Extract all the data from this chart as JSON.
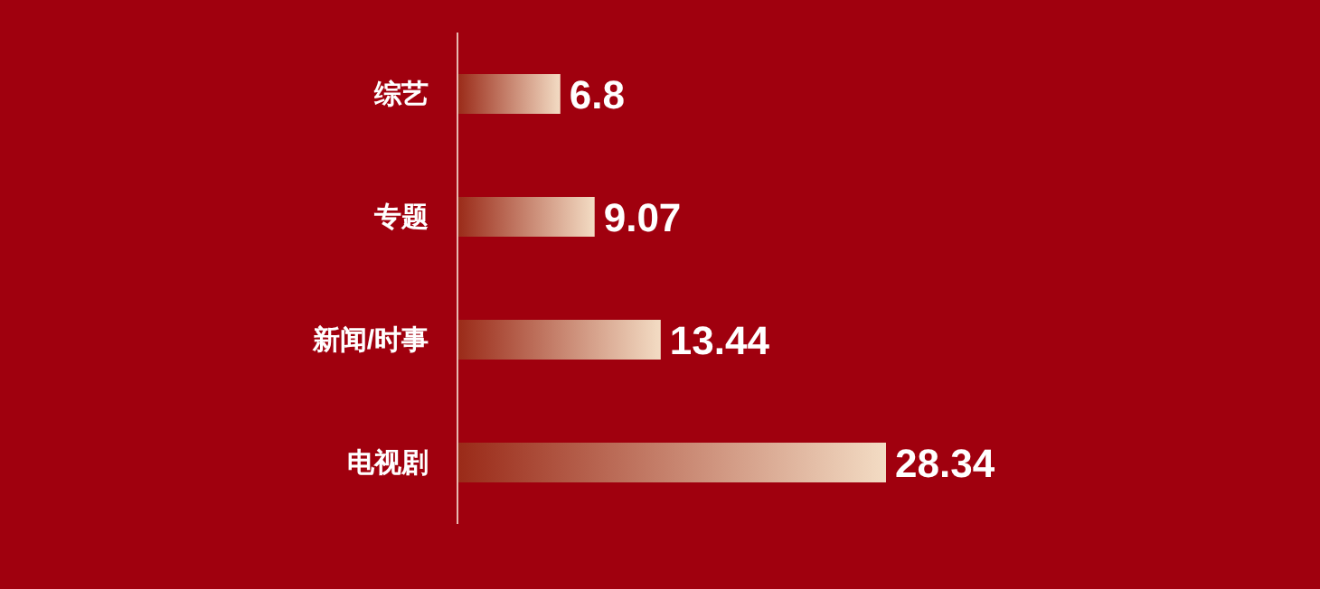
{
  "chart_data": {
    "type": "bar",
    "orientation": "horizontal",
    "categories": [
      "综艺",
      "专题",
      "新闻/时事",
      "电视剧"
    ],
    "values": [
      6.8,
      9.07,
      13.44,
      28.34
    ],
    "color": "#f3dcc4",
    "data_labels": true
  }
}
